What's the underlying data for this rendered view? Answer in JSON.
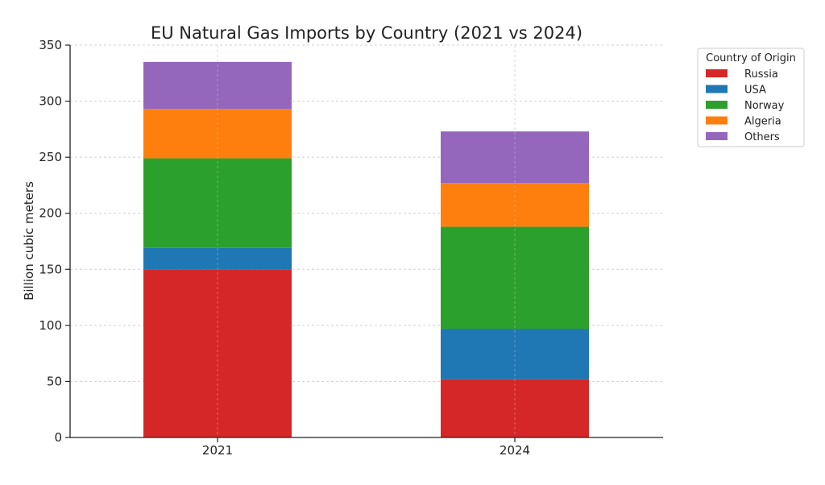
{
  "chart_data": {
    "type": "bar",
    "stacked": true,
    "title": "EU Natural Gas Imports by Country (2021 vs 2024)",
    "xlabel": "",
    "ylabel": "Billion cubic meters",
    "categories": [
      "2021",
      "2024"
    ],
    "ylim": [
      0,
      350
    ],
    "yticks": [
      0,
      50,
      100,
      150,
      200,
      250,
      300,
      350
    ],
    "grid": true,
    "legend_title": "Country of Origin",
    "legend_position": "top-right, outside plot",
    "series": [
      {
        "name": "Russia",
        "values": [
          150,
          52
        ],
        "color": "#d62728"
      },
      {
        "name": "USA",
        "values": [
          19,
          45
        ],
        "color": "#1f77b4"
      },
      {
        "name": "Norway",
        "values": [
          80,
          91
        ],
        "color": "#2ca02c"
      },
      {
        "name": "Algeria",
        "values": [
          44,
          39
        ],
        "color": "#ff7f0e"
      },
      {
        "name": "Others",
        "values": [
          42,
          46
        ],
        "color": "#9467bd"
      }
    ]
  }
}
